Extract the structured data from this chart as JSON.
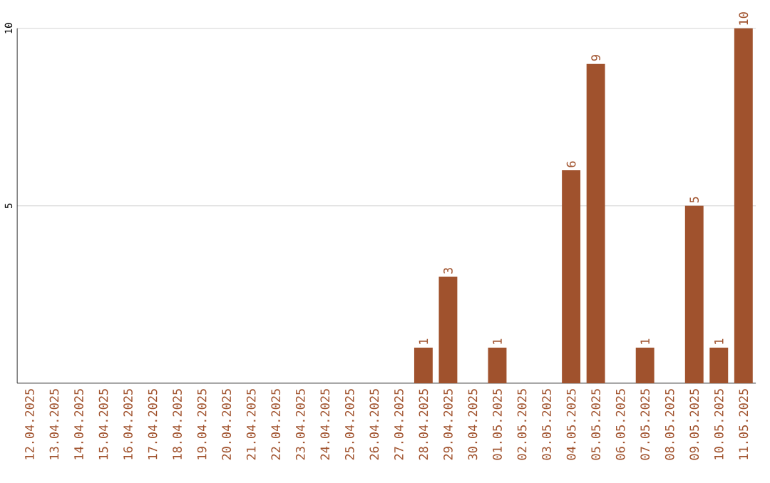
{
  "chart_data": {
    "type": "bar",
    "categories": [
      "12.04.2025",
      "13.04.2025",
      "14.04.2025",
      "15.04.2025",
      "16.04.2025",
      "17.04.2025",
      "18.04.2025",
      "19.04.2025",
      "20.04.2025",
      "21.04.2025",
      "22.04.2025",
      "23.04.2025",
      "24.04.2025",
      "25.04.2025",
      "26.04.2025",
      "27.04.2025",
      "28.04.2025",
      "29.04.2025",
      "30.04.2025",
      "01.05.2025",
      "02.05.2025",
      "03.05.2025",
      "04.05.2025",
      "05.05.2025",
      "06.05.2025",
      "07.05.2025",
      "08.05.2025",
      "09.05.2025",
      "10.05.2025",
      "11.05.2025"
    ],
    "values": [
      0,
      0,
      0,
      0,
      0,
      0,
      0,
      0,
      0,
      0,
      0,
      0,
      0,
      0,
      0,
      0,
      1,
      3,
      0,
      1,
      0,
      0,
      6,
      9,
      0,
      1,
      0,
      5,
      1,
      10
    ],
    "value_labels": [
      null,
      null,
      null,
      null,
      null,
      null,
      null,
      null,
      null,
      null,
      null,
      null,
      null,
      null,
      null,
      null,
      "1",
      "3",
      null,
      "1",
      null,
      null,
      "6",
      "9",
      null,
      "1",
      null,
      "5",
      "1",
      "10"
    ],
    "color": "#a0522d",
    "ylim": [
      0,
      10
    ],
    "yticks": [
      5,
      10
    ],
    "grid": "y"
  }
}
